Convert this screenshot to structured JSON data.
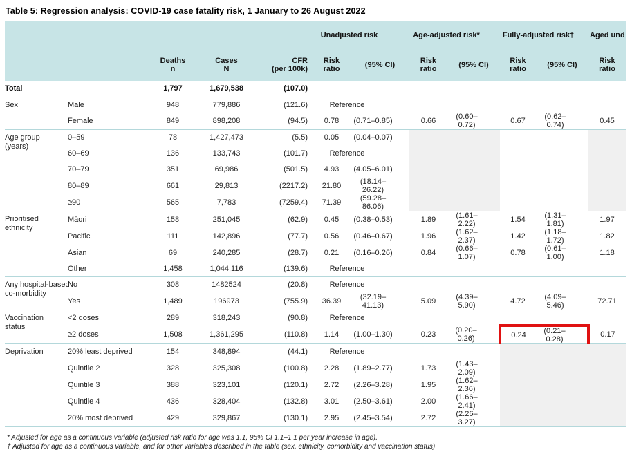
{
  "title": "Table 5: Regression analysis: COVID-19 case fatality risk, 1 January to 26 August 2022",
  "header": {
    "groups": [
      "Unadjusted risk",
      "Age-adjusted risk*",
      "Fully-adjusted risk†",
      "Aged und"
    ],
    "deaths": "Deaths\nn",
    "cases": "Cases\nN",
    "cfr": "CFR\n(per 100k)",
    "risk_ratio": "Risk\nratio",
    "ci": "(95% CI)"
  },
  "reference_label": "Reference",
  "colors": {
    "header_bg": "#c7e4e6",
    "section_line": "#b4d8db",
    "na_cell_bg": "#f0f0f0",
    "highlight_box": "#e01212"
  },
  "sections": [
    {
      "label": "Total",
      "bold": true,
      "rows": [
        {
          "deaths": "1,797",
          "cases": "1,679,538",
          "cfr": "(107.0)"
        }
      ]
    },
    {
      "label": "Sex",
      "rows": [
        {
          "sub": "Male",
          "deaths": "948",
          "cases": "779,886",
          "cfr": "(121.6)",
          "reference": true
        },
        {
          "sub": "Female",
          "deaths": "849",
          "cases": "898,208",
          "cfr": "(94.5)",
          "u_rr": "0.78",
          "u_ci": "(0.71–0.85)",
          "a_rr": "0.66",
          "a_ci": "(0.60–0.72)",
          "f_rr": "0.67",
          "f_ci": "(0.62–0.74)",
          "g_rr": "0.45"
        }
      ]
    },
    {
      "label": "Age group\n(years)",
      "na": [
        "a",
        "g"
      ],
      "rows": [
        {
          "sub": "0–59",
          "deaths": "78",
          "cases": "1,427,473",
          "cfr": "(5.5)",
          "u_rr": "0.05",
          "u_ci": "(0.04–0.07)"
        },
        {
          "sub": "60–69",
          "deaths": "136",
          "cases": "133,743",
          "cfr": "(101.7)",
          "reference": true
        },
        {
          "sub": "70–79",
          "deaths": "351",
          "cases": "69,986",
          "cfr": "(501.5)",
          "u_rr": "4.93",
          "u_ci": "(4.05–6.01)"
        },
        {
          "sub": "80–89",
          "deaths": "661",
          "cases": "29,813",
          "cfr": "(2217.2)",
          "u_rr": "21.80",
          "u_ci": "(18.14–26.22)"
        },
        {
          "sub": "≥90",
          "deaths": "565",
          "cases": "7,783",
          "cfr": "(7259.4)",
          "u_rr": "71.39",
          "u_ci": "(59.28–86.06)"
        }
      ]
    },
    {
      "label": "Prioritised\nethnicity",
      "rows": [
        {
          "sub": "Māori",
          "deaths": "158",
          "cases": "251,045",
          "cfr": "(62.9)",
          "u_rr": "0.45",
          "u_ci": "(0.38–0.53)",
          "a_rr": "1.89",
          "a_ci": "(1.61–2.22)",
          "f_rr": "1.54",
          "f_ci": "(1.31–1.81)",
          "g_rr": "1.97"
        },
        {
          "sub": "Pacific",
          "deaths": "111",
          "cases": "142,896",
          "cfr": "(77.7)",
          "u_rr": "0.56",
          "u_ci": "(0.46–0.67)",
          "a_rr": "1.96",
          "a_ci": "(1.62–2.37)",
          "f_rr": "1.42",
          "f_ci": "(1.18–1.72)",
          "g_rr": "1.82"
        },
        {
          "sub": "Asian",
          "deaths": "69",
          "cases": "240,285",
          "cfr": "(28.7)",
          "u_rr": "0.21",
          "u_ci": "(0.16–0.26)",
          "a_rr": "0.84",
          "a_ci": "(0.66–1.07)",
          "f_rr": "0.78",
          "f_ci": "(0.61–1.00)",
          "g_rr": "1.18"
        },
        {
          "sub": "Other",
          "deaths": "1,458",
          "cases": "1,044,116",
          "cfr": "(139.6)",
          "reference": true
        }
      ]
    },
    {
      "label": "Any hospital-based\nco-morbidity",
      "rows": [
        {
          "sub": "No",
          "deaths": "308",
          "cases": "1482524",
          "cfr": "(20.8)",
          "reference": true
        },
        {
          "sub": "Yes",
          "deaths": "1,489",
          "cases": "196973",
          "cfr": "(755.9)",
          "u_rr": "36.39",
          "u_ci": "(32.19–41.13)",
          "a_rr": "5.09",
          "a_ci": "(4.39–5.90)",
          "f_rr": "4.72",
          "f_ci": "(4.09–5.46)",
          "g_rr": "72.71"
        }
      ]
    },
    {
      "label": "Vaccination\nstatus",
      "rows": [
        {
          "sub": "<2 doses",
          "deaths": "289",
          "cases": "318,243",
          "cfr": "(90.8)",
          "reference": true
        },
        {
          "sub": "≥2 doses",
          "deaths": "1,508",
          "cases": "1,361,295",
          "cfr": "(110.8)",
          "u_rr": "1.14",
          "u_ci": "(1.00–1.30)",
          "a_rr": "0.23",
          "a_ci": "(0.20–0.26)",
          "f_rr": "0.24",
          "f_ci": "(0.21–0.28)",
          "g_rr": "0.17",
          "highlight": true
        }
      ]
    },
    {
      "label": "Deprivation",
      "na": [
        "f",
        "g"
      ],
      "rows": [
        {
          "sub": "20% least deprived",
          "deaths": "154",
          "cases": "348,894",
          "cfr": "(44.1)",
          "reference": true
        },
        {
          "sub": "Quintile 2",
          "deaths": "328",
          "cases": "325,308",
          "cfr": "(100.8)",
          "u_rr": "2.28",
          "u_ci": "(1.89–2.77)",
          "a_rr": "1.73",
          "a_ci": "(1.43–2.09)"
        },
        {
          "sub": "Quintile 3",
          "deaths": "388",
          "cases": "323,101",
          "cfr": "(120.1)",
          "u_rr": "2.72",
          "u_ci": "(2.26–3.28)",
          "a_rr": "1.95",
          "a_ci": "(1.62–2.36)"
        },
        {
          "sub": "Quintile 4",
          "deaths": "436",
          "cases": "328,404",
          "cfr": "(132.8)",
          "u_rr": "3.01",
          "u_ci": "(2.50–3.61)",
          "a_rr": "2.00",
          "a_ci": "(1.66–2.41)"
        },
        {
          "sub": "20% most deprived",
          "deaths": "429",
          "cases": "329,867",
          "cfr": "(130.1)",
          "u_rr": "2.95",
          "u_ci": "(2.45–3.54)",
          "a_rr": "2.72",
          "a_ci": "(2.26–3.27)"
        }
      ]
    }
  ],
  "footnotes": [
    "* Adjusted for age as a continuous variable (adjusted risk ratio for age was 1.1, 95% CI 1.1–1.1 per year increase in age).",
    "† Adjusted for age as a continuous variable, and for other variables described in the table (sex, ethnicity, comorbidity and vaccination status)"
  ]
}
